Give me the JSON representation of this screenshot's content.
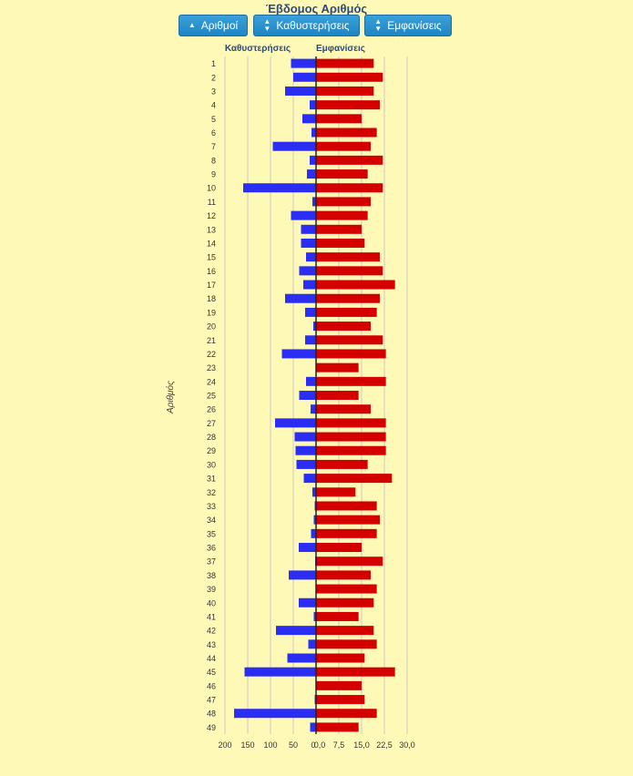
{
  "title": "Έβδομος Αριθμός",
  "buttons": [
    {
      "label": "Αριθμοί",
      "icon": "caret-up-icon"
    },
    {
      "label": "Καθυστερήσεις",
      "icon": "sort-icon"
    },
    {
      "label": "Εμφανίσεις",
      "icon": "sort-icon"
    }
  ],
  "colors": {
    "background": "#fff9b8",
    "left_series": "#2b2ef2",
    "right_series": "#d40000",
    "button": "#2491cf"
  },
  "chart_data": {
    "type": "bar",
    "orientation": "horizontal",
    "ylabel": "Αριθμός",
    "categories": [
      "1",
      "2",
      "3",
      "4",
      "5",
      "6",
      "7",
      "8",
      "9",
      "10",
      "11",
      "12",
      "13",
      "14",
      "15",
      "16",
      "17",
      "18",
      "19",
      "20",
      "21",
      "22",
      "23",
      "24",
      "25",
      "26",
      "27",
      "28",
      "29",
      "30",
      "31",
      "32",
      "33",
      "34",
      "35",
      "36",
      "37",
      "38",
      "39",
      "40",
      "41",
      "42",
      "43",
      "44",
      "45",
      "46",
      "47",
      "48",
      "49"
    ],
    "series": [
      {
        "name": "Καθυστερήσεις",
        "xlim": [
          0,
          200
        ],
        "ticks": [
          "200",
          "150",
          "100",
          "50",
          "0"
        ],
        "values": [
          55,
          50,
          68,
          14,
          30,
          10,
          95,
          14,
          20,
          160,
          8,
          55,
          33,
          33,
          22,
          37,
          28,
          68,
          24,
          6,
          24,
          75,
          0,
          22,
          37,
          12,
          90,
          47,
          45,
          43,
          27,
          8,
          3,
          5,
          11,
          38,
          2,
          60,
          1,
          38,
          5,
          88,
          17,
          63,
          157,
          1,
          3,
          180,
          13
        ]
      },
      {
        "name": "Εμφανίσεις",
        "xlim": [
          0,
          30
        ],
        "ticks": [
          "0,0",
          "7,5",
          "15,0",
          "22,5",
          "30,0"
        ],
        "values": [
          19,
          22,
          19,
          21,
          15,
          20,
          18,
          22,
          17,
          22,
          18,
          17,
          15,
          16,
          21,
          22,
          26,
          21,
          20,
          18,
          22,
          23,
          14,
          23,
          14,
          18,
          23,
          23,
          23,
          17,
          25,
          13,
          20,
          21,
          20,
          15,
          22,
          18,
          20,
          19,
          14,
          19,
          20,
          16,
          26,
          15,
          16,
          20,
          14
        ]
      }
    ]
  }
}
